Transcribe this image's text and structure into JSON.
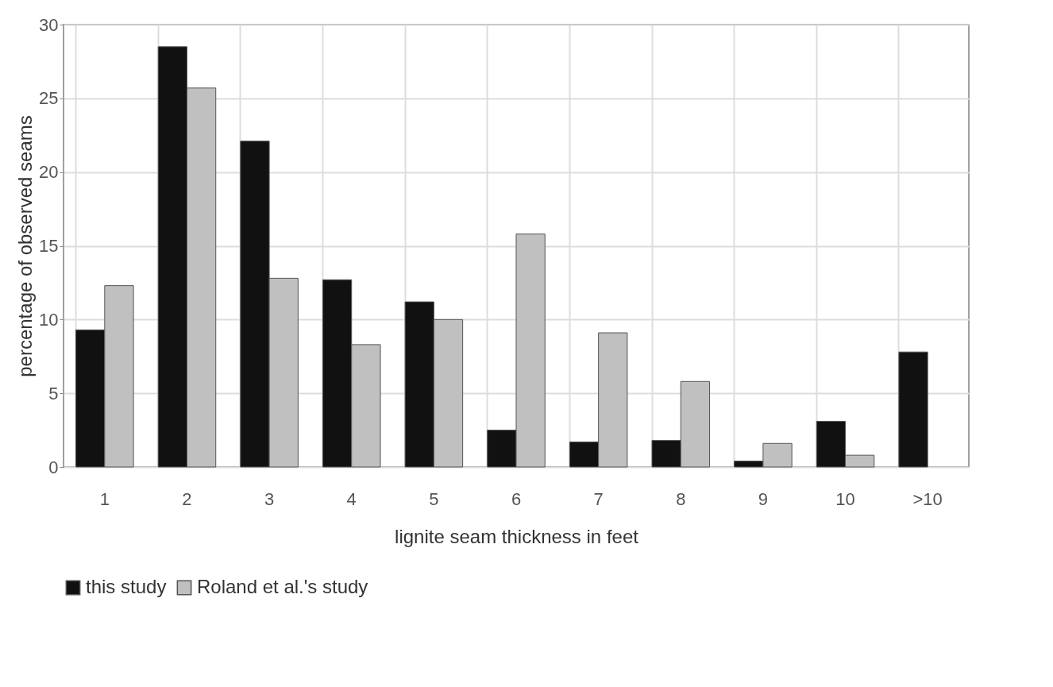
{
  "chart_data": {
    "type": "bar",
    "xlabel": "lignite seam thickness in feet",
    "ylabel": "percentage of observed seams",
    "categories": [
      "1",
      "2",
      "3",
      "4",
      "5",
      "6",
      "7",
      "8",
      "9",
      "10",
      ">10"
    ],
    "series": [
      {
        "name": "this study",
        "color": "#111111",
        "values": [
          9.3,
          28.5,
          22.1,
          12.7,
          11.2,
          2.5,
          1.7,
          1.8,
          0.4,
          3.1,
          7.8
        ]
      },
      {
        "name": "Roland et al.'s study",
        "color": "#c0c0c0",
        "values": [
          12.3,
          25.7,
          12.8,
          8.3,
          10.0,
          15.8,
          9.1,
          5.8,
          1.6,
          0.8,
          null
        ]
      }
    ],
    "ylim": [
      0,
      30
    ],
    "yticks": [
      0,
      5,
      10,
      15,
      20,
      25,
      30
    ],
    "grid": true,
    "legend": "bottom"
  }
}
